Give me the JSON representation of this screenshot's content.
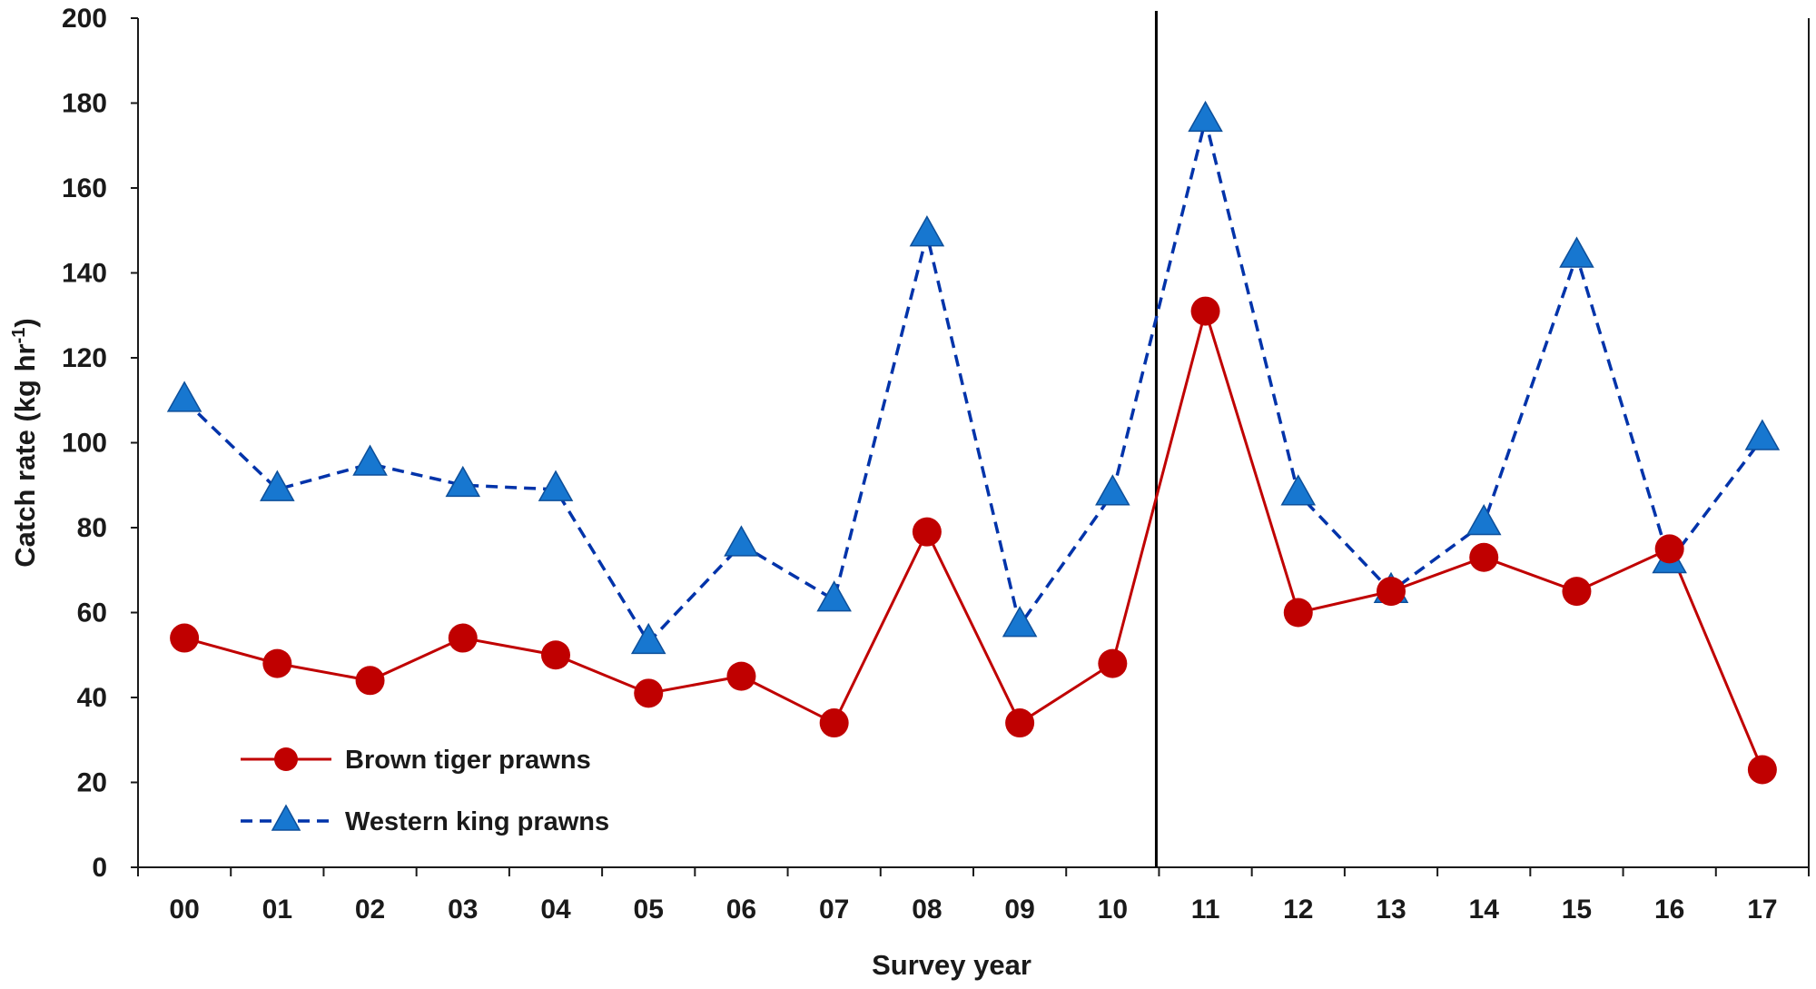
{
  "chart_data": {
    "type": "line",
    "title": "",
    "xlabel": "Survey year",
    "ylabel": "Catch rate (kg hr",
    "ylabel_superscript": "-1",
    "ylabel_close": ")",
    "ylim": [
      0,
      200
    ],
    "yticks": [
      "0",
      "20",
      "40",
      "60",
      "80",
      "100",
      "120",
      "140",
      "160",
      "180",
      "200"
    ],
    "categories": [
      "00",
      "01",
      "02",
      "03",
      "04",
      "05",
      "06",
      "07",
      "08",
      "09",
      "10",
      "11",
      "12",
      "13",
      "14",
      "15",
      "16",
      "17"
    ],
    "divider_after_category": "10",
    "grid": false,
    "legend_position": "bottom-left",
    "series": [
      {
        "name": "Brown tiger prawns",
        "color": "#c00000",
        "line_style": "solid",
        "marker": "circle",
        "values": [
          54,
          48,
          44,
          54,
          50,
          41,
          45,
          34,
          79,
          34,
          48,
          131,
          60,
          65,
          73,
          65,
          75,
          23
        ]
      },
      {
        "name": "Western king prawns",
        "color": "#0033aa",
        "marker_color": "#1777d0",
        "line_style": "dashed",
        "marker": "triangle",
        "values": [
          110,
          89,
          95,
          90,
          89,
          53,
          76,
          63,
          149,
          57,
          88,
          176,
          88,
          65,
          81,
          144,
          72,
          101
        ]
      }
    ]
  }
}
